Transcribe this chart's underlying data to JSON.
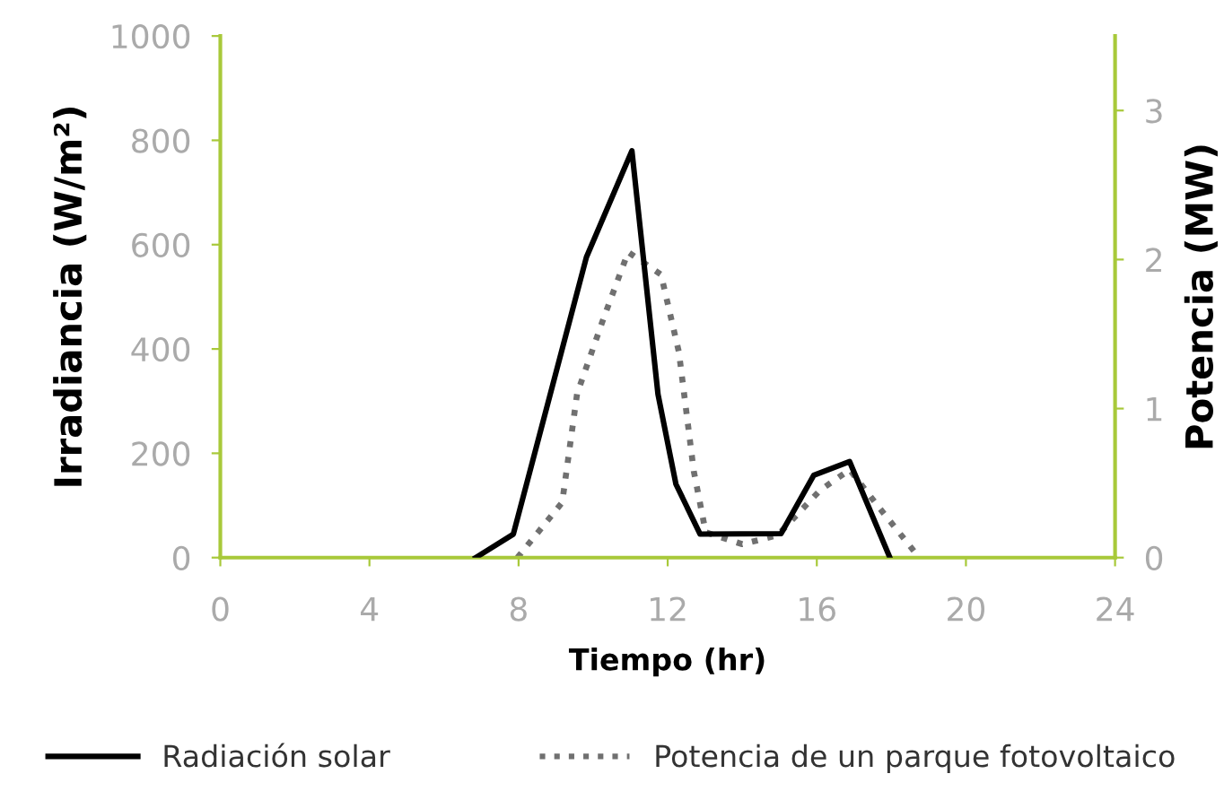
{
  "chart_data": {
    "type": "line",
    "xlabel": "Tiempo (hr)",
    "ylabel": "Irradiancia (W/m²)",
    "y2label": "Potencia (MW)",
    "xlim": [
      0,
      24
    ],
    "xticks": [
      0,
      4,
      8,
      12,
      16,
      20,
      24
    ],
    "ylim": [
      0,
      1000
    ],
    "yticks": [
      0,
      200,
      400,
      600,
      800,
      1000
    ],
    "y2lim": [
      0,
      3.5
    ],
    "y2ticks": [
      0,
      1,
      2,
      3
    ],
    "grid": false,
    "legend": "bottom",
    "marker": "none",
    "series": [
      {
        "name": "Radiación solar",
        "color": "#000000",
        "line_style": "solid",
        "x": [
          6.85,
          7.86,
          9.82,
          11.04,
          11.74,
          12.22,
          12.87,
          15.04,
          15.92,
          16.88,
          17.96
        ],
        "values": [
          0,
          45,
          576,
          780,
          313,
          141,
          45,
          46,
          158,
          184,
          0
        ]
      },
      {
        "name": "Potencia de un parque fotovoltaico",
        "color": "#707070",
        "line_style": "dotted",
        "axis": "y2",
        "x": [
          7.97,
          9.17,
          9.57,
          10.3,
          10.94,
          11.82,
          12.3,
          12.7,
          13.02,
          14.0,
          14.95,
          16.08,
          16.88,
          17.69,
          18.65
        ],
        "values": [
          0,
          0.37,
          1.1,
          1.62,
          2.05,
          1.9,
          1.38,
          0.58,
          0.17,
          0.09,
          0.15,
          0.45,
          0.59,
          0.33,
          0.03
        ]
      }
    ]
  }
}
